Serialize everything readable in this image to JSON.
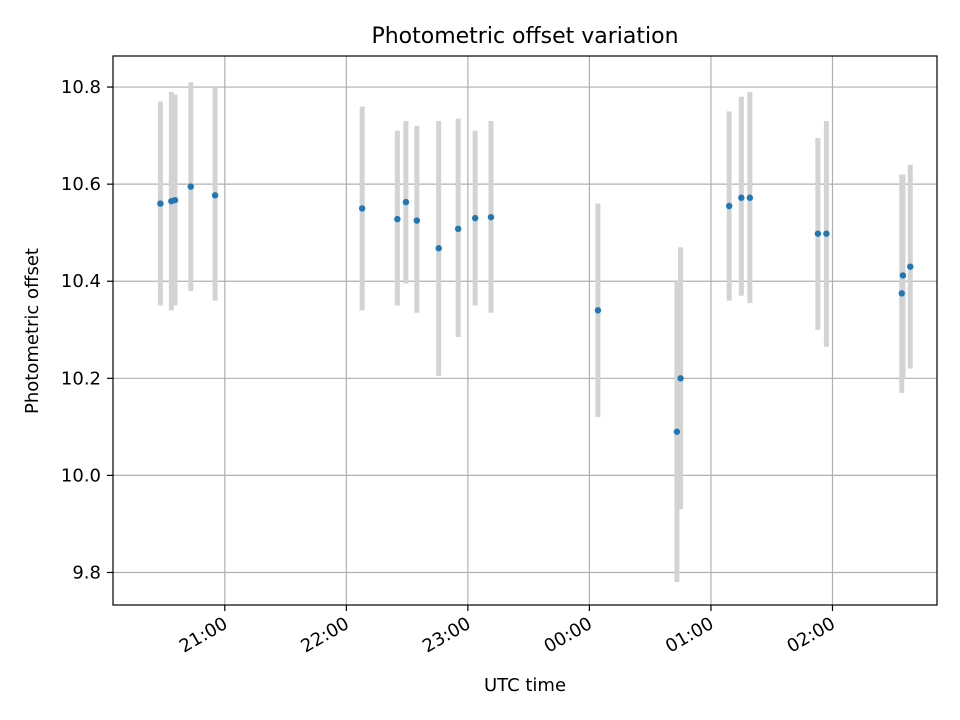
{
  "chart_data": {
    "type": "scatter",
    "title": "Photometric offset variation",
    "xlabel": "UTC time",
    "ylabel": "Photometric offset",
    "x_unit": "hours",
    "xlim": [
      20.08,
      26.86
    ],
    "ylim": [
      9.733,
      10.864
    ],
    "x_ticks": [
      {
        "value": 21,
        "label": "21:00"
      },
      {
        "value": 22,
        "label": "22:00"
      },
      {
        "value": 23,
        "label": "23:00"
      },
      {
        "value": 24,
        "label": "00:00"
      },
      {
        "value": 25,
        "label": "01:00"
      },
      {
        "value": 26,
        "label": "02:00"
      }
    ],
    "y_ticks": [
      {
        "value": 9.8,
        "label": "9.8"
      },
      {
        "value": 10.0,
        "label": "10.0"
      },
      {
        "value": 10.2,
        "label": "10.2"
      },
      {
        "value": 10.4,
        "label": "10.4"
      },
      {
        "value": 10.6,
        "label": "10.6"
      },
      {
        "value": 10.8,
        "label": "10.8"
      }
    ],
    "grid": true,
    "colors": {
      "marker": "#1f77b4",
      "errorbar": "#d3d3d3"
    },
    "points": [
      {
        "x": 20.47,
        "y": 10.56,
        "ylo": 10.35,
        "yhi": 10.77
      },
      {
        "x": 20.56,
        "y": 10.565,
        "ylo": 10.34,
        "yhi": 10.79
      },
      {
        "x": 20.59,
        "y": 10.567,
        "ylo": 10.35,
        "yhi": 10.785
      },
      {
        "x": 20.72,
        "y": 10.595,
        "ylo": 10.38,
        "yhi": 10.81
      },
      {
        "x": 20.92,
        "y": 10.577,
        "ylo": 10.36,
        "yhi": 10.8
      },
      {
        "x": 22.13,
        "y": 10.55,
        "ylo": 10.34,
        "yhi": 10.76
      },
      {
        "x": 22.42,
        "y": 10.528,
        "ylo": 10.35,
        "yhi": 10.71
      },
      {
        "x": 22.49,
        "y": 10.563,
        "ylo": 10.395,
        "yhi": 10.73
      },
      {
        "x": 22.58,
        "y": 10.525,
        "ylo": 10.335,
        "yhi": 10.72
      },
      {
        "x": 22.76,
        "y": 10.468,
        "ylo": 10.205,
        "yhi": 10.73
      },
      {
        "x": 22.92,
        "y": 10.508,
        "ylo": 10.285,
        "yhi": 10.735
      },
      {
        "x": 23.06,
        "y": 10.53,
        "ylo": 10.35,
        "yhi": 10.71
      },
      {
        "x": 23.19,
        "y": 10.532,
        "ylo": 10.335,
        "yhi": 10.73
      },
      {
        "x": 24.07,
        "y": 10.34,
        "ylo": 10.12,
        "yhi": 10.56
      },
      {
        "x": 24.72,
        "y": 10.09,
        "ylo": 9.78,
        "yhi": 10.4
      },
      {
        "x": 24.75,
        "y": 10.2,
        "ylo": 9.93,
        "yhi": 10.47
      },
      {
        "x": 25.15,
        "y": 10.555,
        "ylo": 10.36,
        "yhi": 10.75
      },
      {
        "x": 25.25,
        "y": 10.572,
        "ylo": 10.37,
        "yhi": 10.78
      },
      {
        "x": 25.32,
        "y": 10.572,
        "ylo": 10.355,
        "yhi": 10.79
      },
      {
        "x": 25.88,
        "y": 10.498,
        "ylo": 10.3,
        "yhi": 10.695
      },
      {
        "x": 25.95,
        "y": 10.498,
        "ylo": 10.265,
        "yhi": 10.73
      },
      {
        "x": 26.57,
        "y": 10.375,
        "ylo": 10.17,
        "yhi": 10.62
      },
      {
        "x": 26.58,
        "y": 10.412,
        "ylo": 10.2,
        "yhi": 10.62
      },
      {
        "x": 26.64,
        "y": 10.43,
        "ylo": 10.22,
        "yhi": 10.64
      }
    ]
  }
}
